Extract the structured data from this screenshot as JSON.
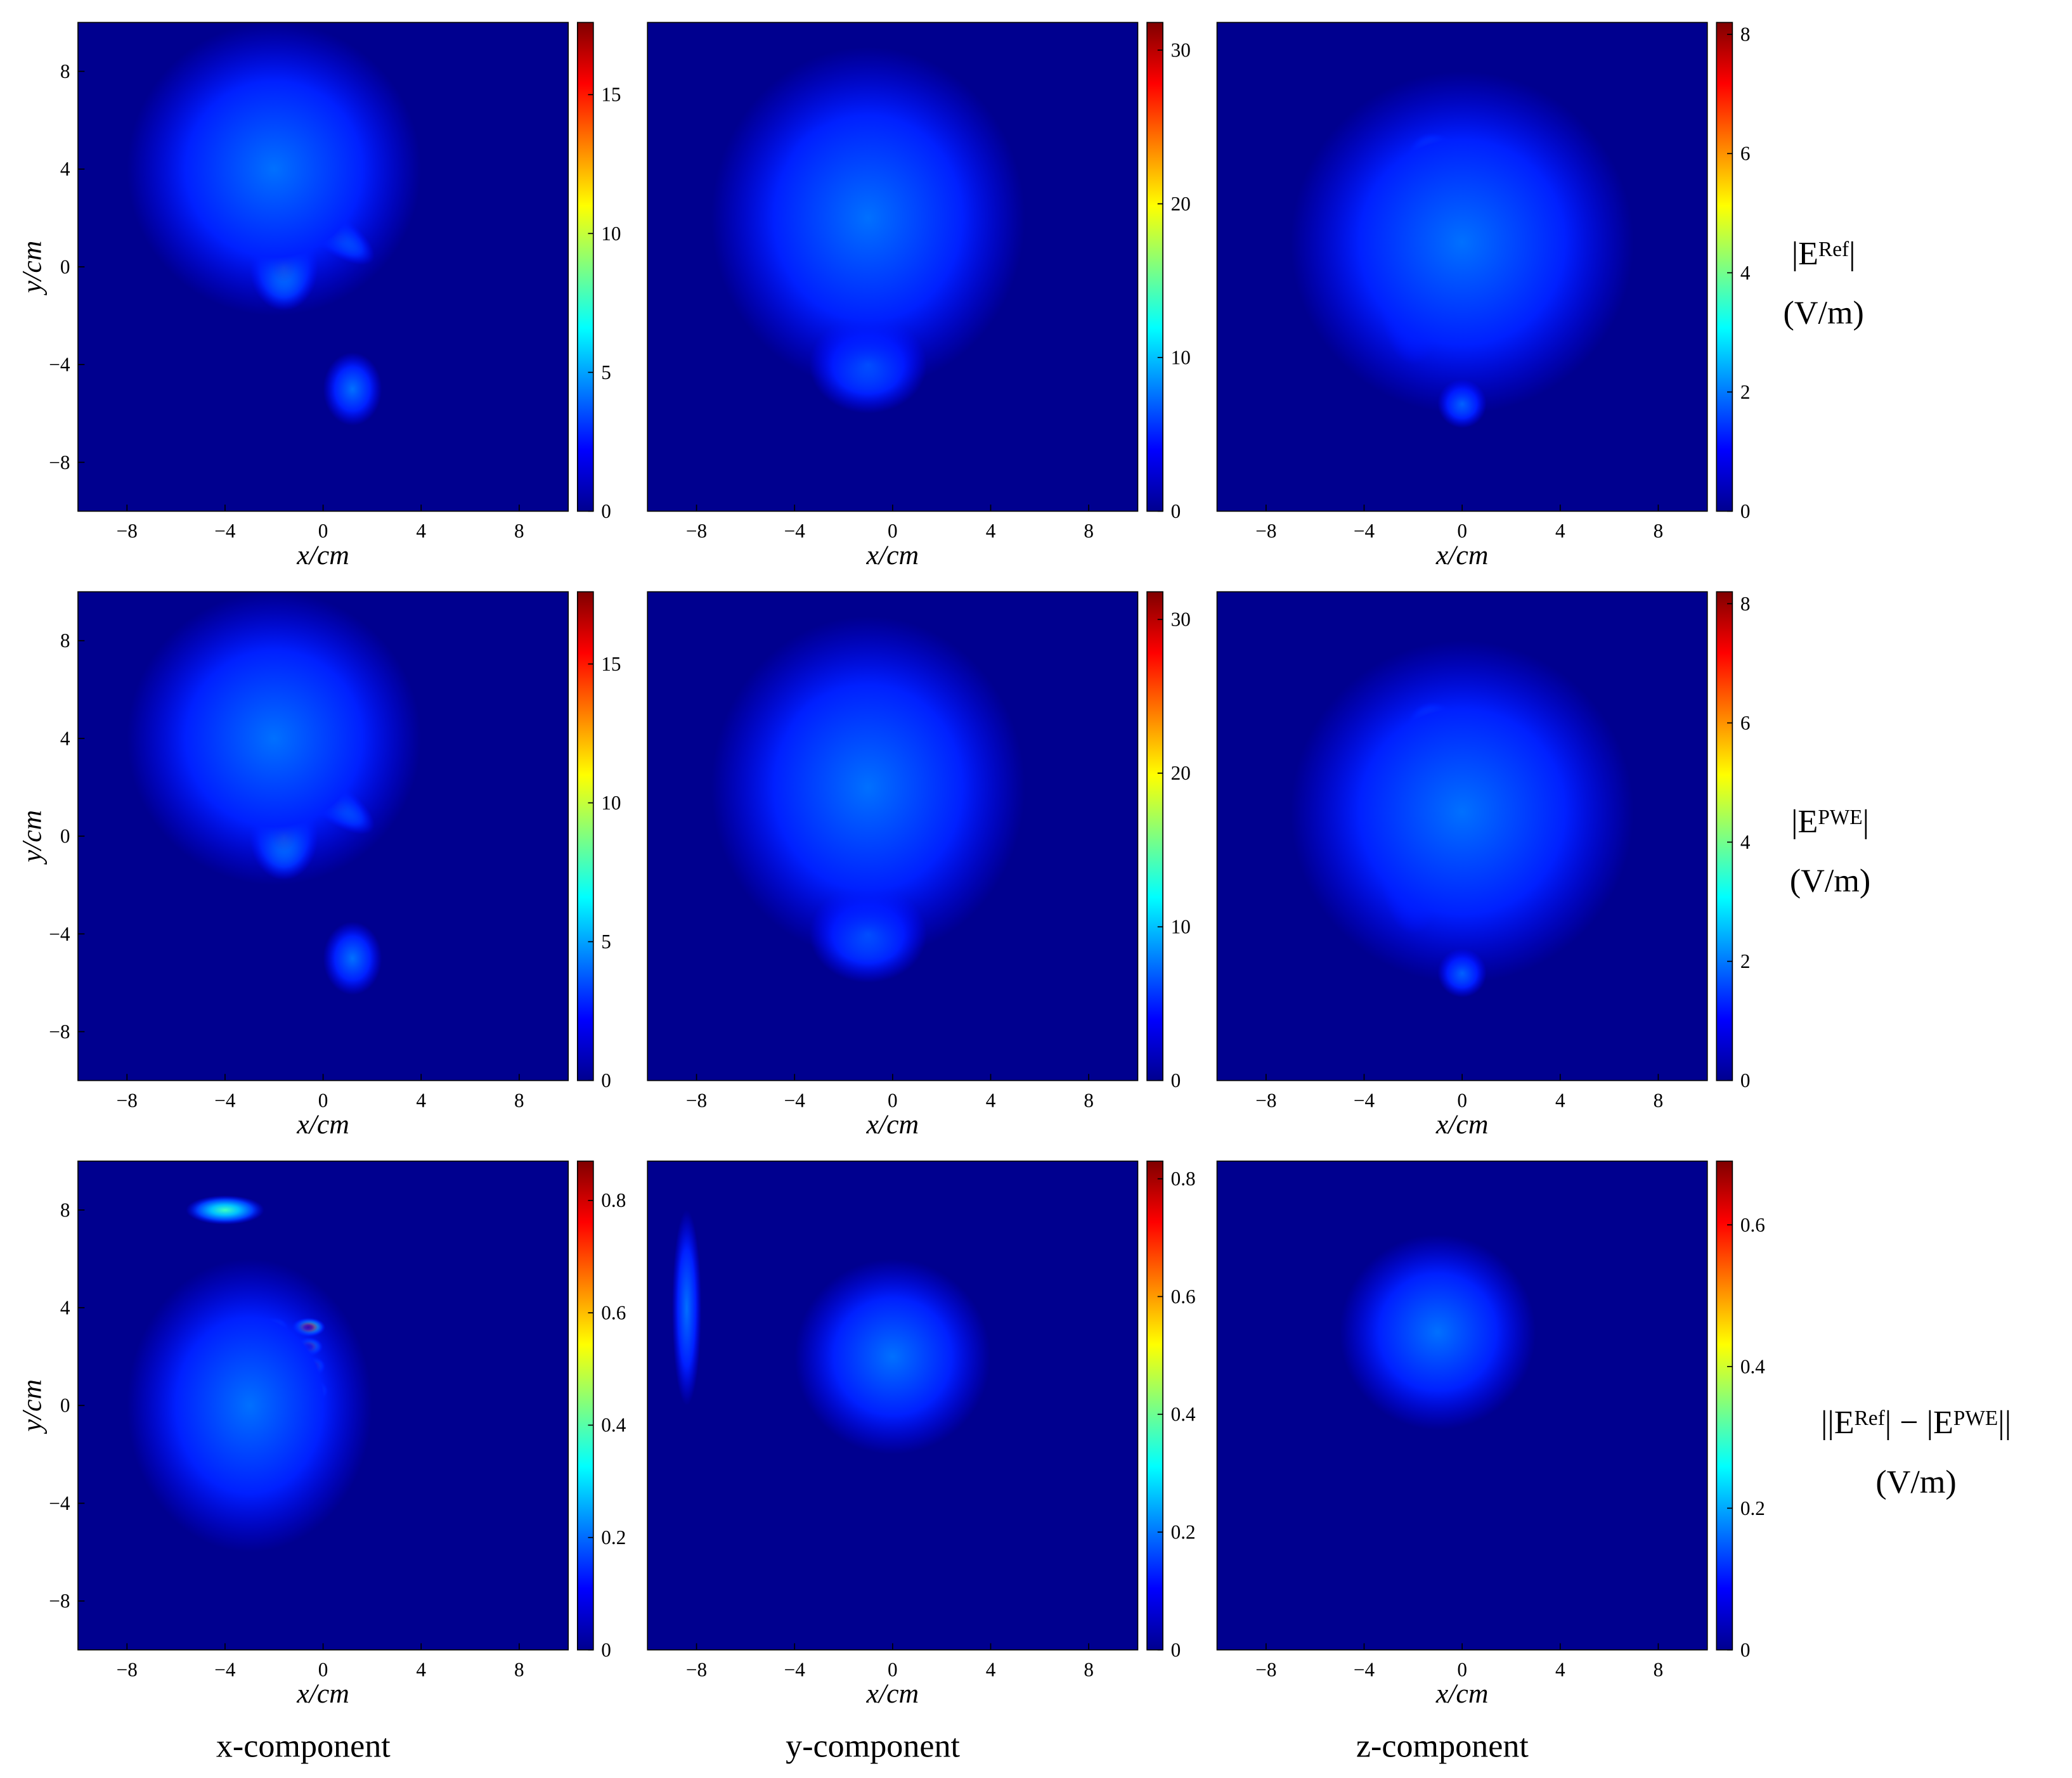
{
  "colormap": "jet",
  "column_labels": [
    "x-component",
    "y-component",
    "z-component"
  ],
  "row_labels": [
    {
      "parts": [
        "|E",
        "Ref",
        "|"
      ],
      "unit": "(V/m)"
    },
    {
      "parts": [
        "|E",
        "PWE",
        "|"
      ],
      "unit": "(V/m)"
    },
    {
      "parts": [
        "||E",
        "Ref",
        "| − |E",
        "PWE",
        "||"
      ],
      "unit": "(V/m)"
    }
  ],
  "chart_data": [
    {
      "type": "heatmap",
      "xlabel": "x/cm",
      "ylabel": "y/cm",
      "xlim": [
        -10,
        10
      ],
      "ylim": [
        -10,
        10
      ],
      "xticks": [
        {
          "value": -8,
          "label": "−8"
        },
        {
          "value": -4,
          "label": "−4"
        },
        0,
        4,
        8
      ],
      "yticks": [
        {
          "value": -8,
          "label": "−8"
        },
        {
          "value": -4,
          "label": "−4"
        },
        0,
        4,
        8
      ],
      "clim": [
        0,
        17.6
      ],
      "cticks": [
        0,
        5,
        10,
        15
      ]
    },
    {
      "type": "heatmap",
      "xlabel": "x/cm",
      "xlim": [
        -10,
        10
      ],
      "ylim": [
        -10,
        10
      ],
      "xticks": [
        {
          "value": -8,
          "label": "−8"
        },
        {
          "value": -4,
          "label": "−4"
        },
        0,
        4,
        8
      ],
      "clim": [
        0,
        31.8
      ],
      "cticks": [
        0,
        10,
        20,
        30
      ]
    },
    {
      "type": "heatmap",
      "xlabel": "x/cm",
      "xlim": [
        -10,
        10
      ],
      "ylim": [
        -10,
        10
      ],
      "xticks": [
        {
          "value": -8,
          "label": "−8"
        },
        {
          "value": -4,
          "label": "−4"
        },
        0,
        4,
        8
      ],
      "clim": [
        0,
        8.2
      ],
      "cticks": [
        0,
        2,
        4,
        6,
        8
      ]
    },
    {
      "type": "heatmap",
      "xlabel": "x/cm",
      "ylabel": "y/cm",
      "xlim": [
        -10,
        10
      ],
      "ylim": [
        -10,
        10
      ],
      "xticks": [
        {
          "value": -8,
          "label": "−8"
        },
        {
          "value": -4,
          "label": "−4"
        },
        0,
        4,
        8
      ],
      "yticks": [
        {
          "value": -8,
          "label": "−8"
        },
        {
          "value": -4,
          "label": "−4"
        },
        0,
        4,
        8
      ],
      "clim": [
        0,
        17.6
      ],
      "cticks": [
        0,
        5,
        10,
        15
      ]
    },
    {
      "type": "heatmap",
      "xlabel": "x/cm",
      "xlim": [
        -10,
        10
      ],
      "ylim": [
        -10,
        10
      ],
      "xticks": [
        {
          "value": -8,
          "label": "−8"
        },
        {
          "value": -4,
          "label": "−4"
        },
        0,
        4,
        8
      ],
      "clim": [
        0,
        31.8
      ],
      "cticks": [
        0,
        10,
        20,
        30
      ]
    },
    {
      "type": "heatmap",
      "xlabel": "x/cm",
      "xlim": [
        -10,
        10
      ],
      "ylim": [
        -10,
        10
      ],
      "xticks": [
        {
          "value": -8,
          "label": "−8"
        },
        {
          "value": -4,
          "label": "−4"
        },
        0,
        4,
        8
      ],
      "clim": [
        0,
        8.2
      ],
      "cticks": [
        0,
        2,
        4,
        6,
        8
      ]
    },
    {
      "type": "heatmap",
      "xlabel": "x/cm",
      "ylabel": "y/cm",
      "xlim": [
        -10,
        10
      ],
      "ylim": [
        -10,
        10
      ],
      "xticks": [
        {
          "value": -8,
          "label": "−8"
        },
        {
          "value": -4,
          "label": "−4"
        },
        0,
        4,
        8
      ],
      "yticks": [
        {
          "value": -8,
          "label": "−8"
        },
        {
          "value": -4,
          "label": "−4"
        },
        0,
        4,
        8
      ],
      "clim": [
        0,
        0.87
      ],
      "cticks": [
        0,
        0.2,
        0.4,
        0.6,
        0.8
      ]
    },
    {
      "type": "heatmap",
      "xlabel": "x/cm",
      "xlim": [
        -10,
        10
      ],
      "ylim": [
        -10,
        10
      ],
      "xticks": [
        {
          "value": -8,
          "label": "−8"
        },
        {
          "value": -4,
          "label": "−4"
        },
        0,
        4,
        8
      ],
      "clim": [
        0,
        0.83
      ],
      "cticks": [
        0,
        0.2,
        0.4,
        0.6,
        0.8
      ]
    },
    {
      "type": "heatmap",
      "xlabel": "x/cm",
      "xlim": [
        -10,
        10
      ],
      "ylim": [
        -10,
        10
      ],
      "xticks": [
        {
          "value": -8,
          "label": "−8"
        },
        {
          "value": -4,
          "label": "−4"
        },
        0,
        4,
        8
      ],
      "clim": [
        0,
        0.69
      ],
      "cticks": [
        0,
        0.2,
        0.4,
        0.6
      ]
    }
  ]
}
